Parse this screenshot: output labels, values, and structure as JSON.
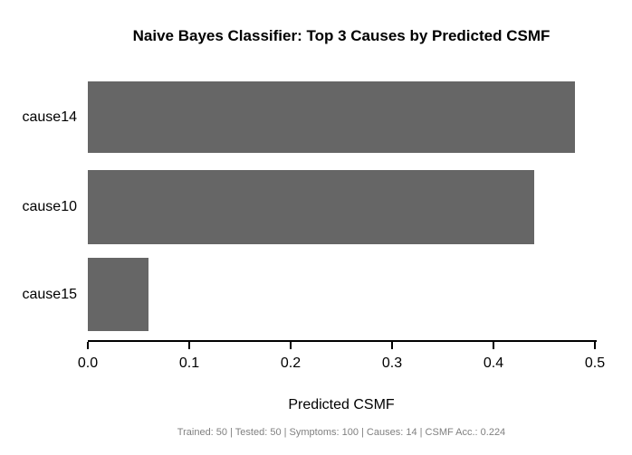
{
  "chart_data": {
    "type": "bar",
    "orientation": "horizontal",
    "title": "Naive Bayes Classifier: Top 3 Causes by Predicted CSMF",
    "categories": [
      "cause14",
      "cause10",
      "cause15"
    ],
    "values": [
      0.48,
      0.44,
      0.06
    ],
    "xlabel": "Predicted CSMF",
    "xlim": [
      0,
      0.5
    ],
    "x_tick_labels": [
      "0.0",
      "0.1",
      "0.2",
      "0.3",
      "0.4",
      "0.5"
    ],
    "x_tick_values": [
      0.0,
      0.1,
      0.2,
      0.3,
      0.4,
      0.5
    ],
    "grid": false,
    "legend": false,
    "bar_color": "#666666",
    "axis_color": "#000000",
    "title_color": "#000000",
    "footer": "Trained: 50 | Tested: 50 | Symptoms: 100 | Causes: 14 | CSMF Acc.: 0.224",
    "footer_color": "#808080",
    "background_color": "#ffffff"
  }
}
